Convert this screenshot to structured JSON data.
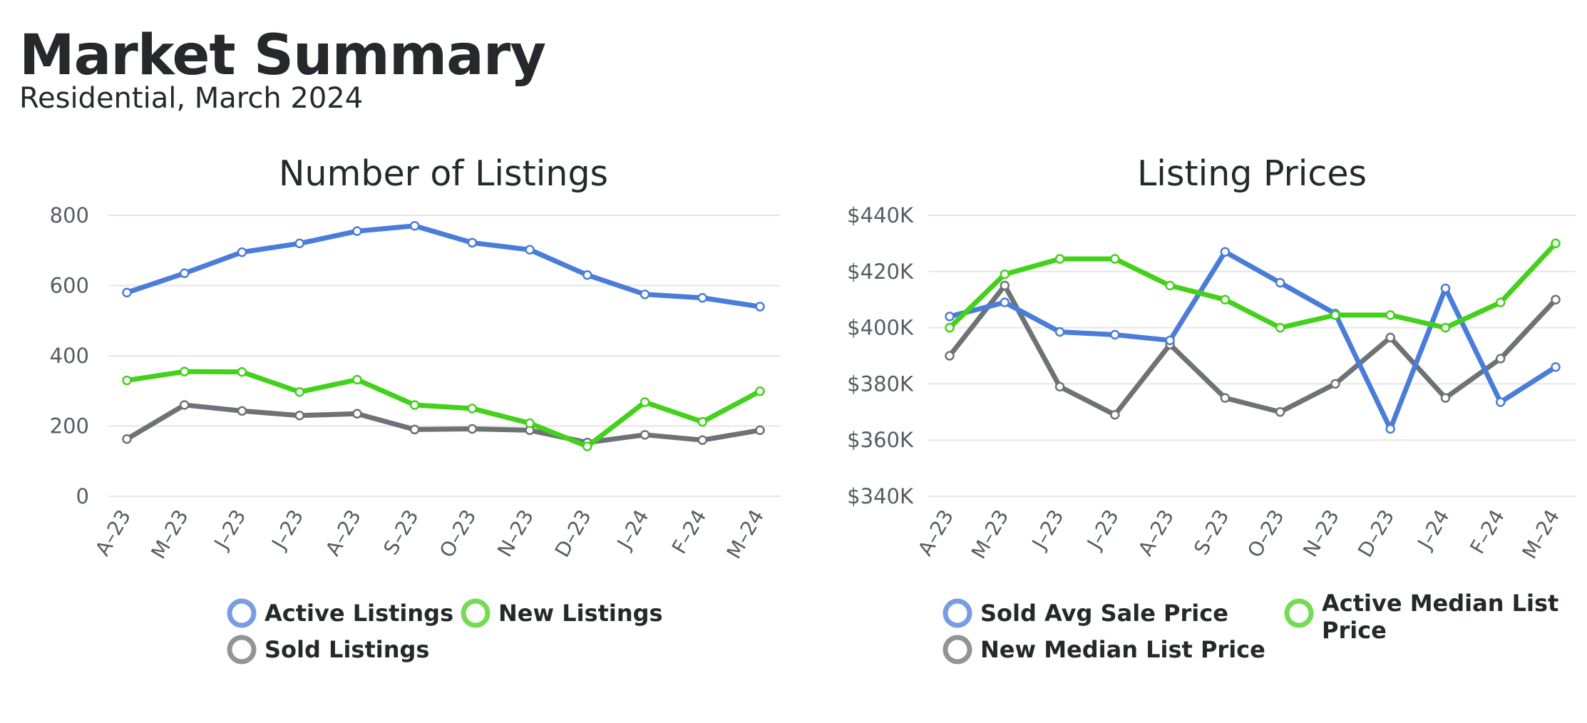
{
  "header": {
    "title": "Market Summary",
    "subtitle": "Residential, March 2024"
  },
  "chart_data": [
    {
      "type": "line",
      "title": "Number of Listings",
      "categories": [
        "A–23",
        "M–23",
        "J–23",
        "J–23",
        "A–23",
        "S–23",
        "O–23",
        "N–23",
        "D–23",
        "J–24",
        "F–24",
        "M–24"
      ],
      "ylim": [
        0,
        800
      ],
      "yticks": [
        0,
        200,
        400,
        600,
        800
      ],
      "ytick_labels": [
        "0",
        "200",
        "400",
        "600",
        "800"
      ],
      "grid": true,
      "legend_position": "bottom",
      "series": [
        {
          "name": "Active Listings",
          "color": "#4a7dd9",
          "values": [
            580,
            635,
            695,
            720,
            755,
            770,
            722,
            702,
            630,
            575,
            565,
            540
          ]
        },
        {
          "name": "New Listings",
          "color": "#43d11b",
          "values": [
            330,
            355,
            354,
            297,
            332,
            260,
            250,
            208,
            142,
            268,
            212,
            299
          ]
        },
        {
          "name": "Sold Listings",
          "color": "#6e7275",
          "values": [
            163,
            260,
            243,
            230,
            235,
            190,
            192,
            188,
            153,
            175,
            160,
            188
          ]
        }
      ]
    },
    {
      "type": "line",
      "title": "Listing Prices",
      "categories": [
        "A–23",
        "M–23",
        "J–23",
        "J–23",
        "A–23",
        "S–23",
        "O–23",
        "N–23",
        "D–23",
        "J–24",
        "F–24",
        "M–24"
      ],
      "ylim": [
        340000,
        440000
      ],
      "yticks": [
        340000,
        360000,
        380000,
        400000,
        420000,
        440000
      ],
      "ytick_labels": [
        "$340K",
        "$360K",
        "$380K",
        "$400K",
        "$420K",
        "$440K"
      ],
      "grid": true,
      "legend_position": "bottom",
      "series": [
        {
          "name": "Sold Avg Sale Price",
          "color": "#4a7dd9",
          "values": [
            404000,
            409000,
            398500,
            397500,
            395500,
            427000,
            416000,
            405000,
            364000,
            414000,
            373500,
            386000
          ]
        },
        {
          "name": "New Median List Price",
          "color": "#6e7275",
          "values": [
            390000,
            415000,
            379000,
            369000,
            394000,
            375000,
            370000,
            380000,
            396500,
            375000,
            389000,
            410000
          ]
        },
        {
          "name": "Active Median List Price",
          "color": "#43d11b",
          "values": [
            400000,
            419000,
            424500,
            424500,
            415000,
            410000,
            400000,
            404500,
            404500,
            400000,
            409000,
            430000
          ]
        }
      ]
    }
  ]
}
